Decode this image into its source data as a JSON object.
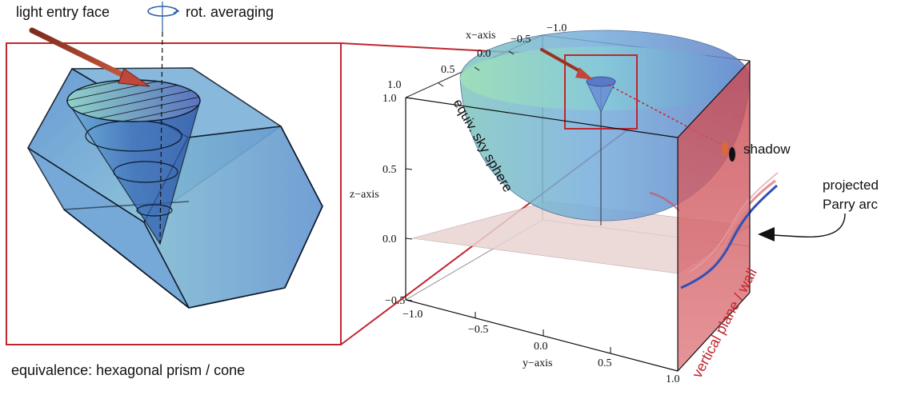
{
  "labels": {
    "light_entry": "light entry face",
    "rot_averaging": "rot. averaging",
    "equivalence": "equivalence: hexagonal prism / cone",
    "sky_sphere": "equiv. sky sphere",
    "shadow": "shadow",
    "projected_1": "projected",
    "projected_2": "Parry arc",
    "vertical_plane": "vertical plane / wall"
  },
  "axes": {
    "x_label": "x−axis",
    "y_label": "y−axis",
    "z_label": "z−axis",
    "x_ticks": [
      "−1.0",
      "−0.5",
      "0.0",
      "0.5",
      "1.0"
    ],
    "y_ticks": [
      "−1.0",
      "−0.5",
      "0.0",
      "0.5",
      "1.0"
    ],
    "z_ticks": [
      "1.0",
      "0.5",
      "0.0",
      "−0.5"
    ]
  },
  "colors": {
    "highlight_red": "#c0262e",
    "prism_blue": "#6f9fd4",
    "cone_blue": "#3f72b5",
    "wall_red": "#d9646a",
    "floor_pink": "#e8d4d2",
    "arrow_red": "#b23a2e"
  }
}
